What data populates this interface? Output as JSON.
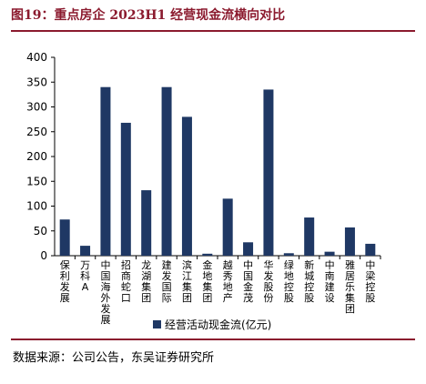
{
  "figure": {
    "title": "图19：重点房企 2023H1 经营现金流横向对比",
    "source": "数据来源：公司公告，东吴证券研究所"
  },
  "colors": {
    "bar": "#1f3864",
    "title": "#8b1a2e",
    "axis": "#000000"
  },
  "chart_data": {
    "type": "bar",
    "categories": [
      "保利发展",
      "万科A",
      "中国海外发展",
      "招商蛇口",
      "龙湖集团",
      "建发国际",
      "滨江集团",
      "金地集团",
      "越秀地产",
      "中国金茂",
      "华发股份",
      "绿地控股",
      "新城控股",
      "中南建设",
      "雅居乐集团",
      "中梁控股"
    ],
    "series": [
      {
        "name": "经营活动现金流(亿元)",
        "values": [
          73,
          20,
          340,
          268,
          132,
          340,
          280,
          4,
          115,
          27,
          335,
          5,
          77,
          8,
          57,
          24
        ]
      }
    ],
    "ylim": [
      0,
      400
    ],
    "yticks": [
      0,
      50,
      100,
      150,
      200,
      250,
      300,
      350,
      400
    ],
    "grid": false,
    "legend": "bottom"
  }
}
